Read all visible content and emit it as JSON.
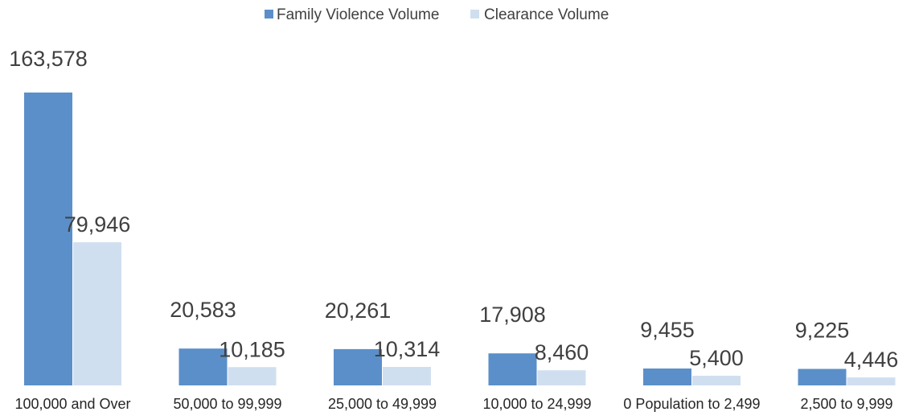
{
  "chart_data": {
    "type": "bar",
    "title": "",
    "xlabel": "",
    "ylabel": "",
    "ylim": [
      0,
      163578
    ],
    "grid": false,
    "legend_position": "top",
    "categories": [
      "100,000 and Over",
      "50,000 to 99,999",
      "25,000 to 49,999",
      "10,000 to 24,999",
      "0 Population to 2,499",
      "2,500 to 9,999"
    ],
    "series": [
      {
        "name": "Family Violence Volume",
        "color": "#5b8fc9",
        "values": [
          163578,
          20583,
          20261,
          17908,
          9455,
          9225
        ],
        "labels": [
          "163,578",
          "20,583",
          "20,261",
          "17,908",
          "9,455",
          "9,225"
        ]
      },
      {
        "name": "Clearance Volume",
        "color": "#d0dff0",
        "values": [
          79946,
          10185,
          10314,
          8460,
          5400,
          4446
        ],
        "labels": [
          "79,946",
          "10,185",
          "10,314",
          "8,460",
          "5,400",
          "4,446"
        ]
      }
    ]
  }
}
